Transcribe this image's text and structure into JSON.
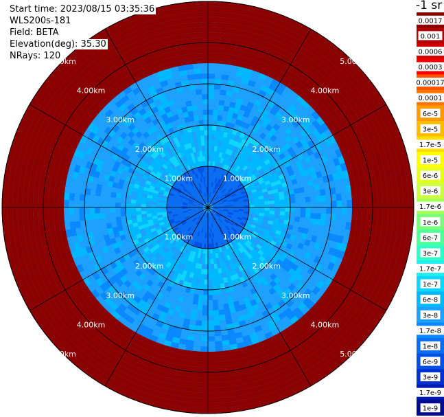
{
  "header": {
    "start_time": "Start time: 2023/08/15 03:35:36",
    "instrument": "WLS200s-181",
    "field": "Field: BETA",
    "elevation": "Elevation(deg): 35.30",
    "nrays": "NRays: 120"
  },
  "chart_data": {
    "type": "heatmap",
    "projection": "polar-ppi",
    "range_rings_km": [
      1,
      2,
      3,
      4,
      5
    ],
    "range_labels": [
      "1.00km",
      "2.00km",
      "3.00km",
      "4.00km",
      "5.00km"
    ],
    "max_range_km": 5.0,
    "azimuth_spokes_deg": [
      0,
      30,
      60,
      90,
      120,
      150,
      180,
      210,
      240,
      270,
      300,
      330
    ],
    "grid": true,
    "nrays": 120,
    "range_gates": 40,
    "dominant_class_by_range_km": [
      {
        "from": 0.0,
        "to": 1.0,
        "color": "#0a6cf0"
      },
      {
        "from": 1.0,
        "to": 2.0,
        "color": "#00b8ff"
      },
      {
        "from": 2.0,
        "to": 3.5,
        "color": "#1ea0ff"
      },
      {
        "from": 3.5,
        "to": 5.0,
        "color": "#0a78f0"
      }
    ],
    "colorbar": {
      "title": "-1 sr",
      "placement": "right",
      "ticks": [
        "0.0017",
        "0.001",
        "0.0006",
        "0.0003",
        "0.00017",
        "0.0001",
        "6e-5",
        "3e-5",
        "1.7e-5",
        "1e-5",
        "6e-6",
        "3e-6",
        "1.7e-6",
        "1e-6",
        "6e-7",
        "3e-7",
        "1.7e-7",
        "1e-7",
        "6e-8",
        "3e-8",
        "1.7e-8",
        "1e-8",
        "6e-9",
        "3e-9",
        "1.7e-9",
        "1e-9"
      ],
      "colors": [
        "#8b0000",
        "#b00000",
        "#d40000",
        "#f00000",
        "#ff5500",
        "#ff7700",
        "#ff9a00",
        "#ffbb00",
        "#ffdd00",
        "#ffff00",
        "#e6ff22",
        "#ccff44",
        "#a6ff5a",
        "#7aff7a",
        "#50ff9a",
        "#30ffc8",
        "#20f0f0",
        "#10d6ff",
        "#00b8ff",
        "#1ea0ff",
        "#0a88ff",
        "#0a6cf0",
        "#0050e6",
        "#0030d2",
        "#0018b4",
        "#000a8c"
      ],
      "scale": "log"
    }
  }
}
